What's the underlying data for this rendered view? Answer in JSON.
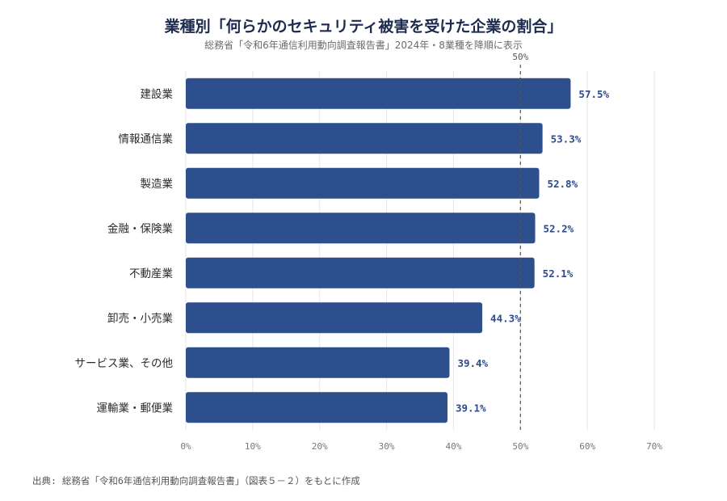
{
  "title": "業種別「何らかのセキュリティ被害を受けた企業の割合」",
  "subtitle": "総務省「令和6年通信利用動向調査報告書」2024年・8業種を降順に表示",
  "source": "出典: 総務省「令和6年通信利用動向調査報告書」（図表５－２）をもとに作成",
  "colors": {
    "bar": "#2d4f8e",
    "value_label": "#2d4b8c",
    "grid": "#e6e6e6",
    "reference_line": "#555555"
  },
  "chart_data": {
    "type": "bar",
    "orientation": "horizontal",
    "categories": [
      "建設業",
      "情報通信業",
      "製造業",
      "金融・保険業",
      "不動産業",
      "卸売・小売業",
      "サービス業、その他",
      "運輸業・郵便業"
    ],
    "values": [
      57.5,
      53.3,
      52.8,
      52.2,
      52.1,
      44.3,
      39.4,
      39.1
    ],
    "value_labels": [
      "57.5%",
      "53.3%",
      "52.8%",
      "52.2%",
      "52.1%",
      "44.3%",
      "39.4%",
      "39.1%"
    ],
    "xlim": [
      0,
      70
    ],
    "x_ticks": [
      0,
      10,
      20,
      30,
      40,
      50,
      60,
      70
    ],
    "x_tick_labels": [
      "0%",
      "10%",
      "20%",
      "30%",
      "40%",
      "50%",
      "60%",
      "70%"
    ],
    "reference_line": {
      "value": 50,
      "label": "50%",
      "style": "dashed"
    },
    "grid": true,
    "xlabel": "",
    "ylabel": ""
  }
}
